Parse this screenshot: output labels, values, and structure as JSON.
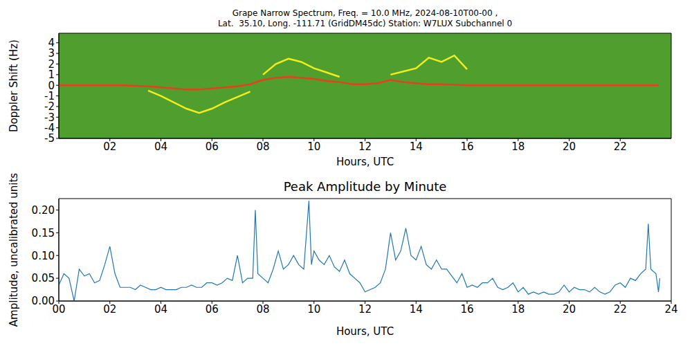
{
  "chart_data": [
    {
      "type": "spectrogram",
      "title": "Grape Narrow Spectrum, Freq. = 10.0 MHz, 2024-08-10T00-00 ,",
      "subtitle": "Lat.  35.10, Long. -111.71 (GridDM45dc) Station: W7LUX Subchannel 0",
      "x_label": "Hours, UTC",
      "y_label": "Doppler Shift (Hz)",
      "xlim": [
        0,
        24
      ],
      "xticks": [
        {
          "value": 2,
          "label": "02"
        },
        {
          "value": 4,
          "label": "04"
        },
        {
          "value": 6,
          "label": "06"
        },
        {
          "value": 8,
          "label": "08"
        },
        {
          "value": 10,
          "label": "10"
        },
        {
          "value": 12,
          "label": "12"
        },
        {
          "value": 14,
          "label": "14"
        },
        {
          "value": 16,
          "label": "16"
        },
        {
          "value": 18,
          "label": "18"
        },
        {
          "value": 20,
          "label": "20"
        },
        {
          "value": 22,
          "label": "22"
        }
      ],
      "ylim": [
        -5,
        4.9
      ],
      "yticks": [
        -5,
        -4,
        -3,
        -2,
        -1,
        0,
        1,
        2,
        3,
        4
      ],
      "x": [
        0,
        0.5,
        1,
        1.5,
        2,
        2.5,
        3,
        3.5,
        4,
        4.5,
        5,
        5.5,
        6,
        6.5,
        7,
        7.5,
        8,
        8.5,
        9,
        9.5,
        10,
        10.5,
        11,
        11.5,
        12,
        12.5,
        13,
        13.5,
        14,
        14.5,
        15,
        15.5,
        16,
        16.5,
        17,
        17.5,
        18,
        18.5,
        19,
        19.5,
        20,
        20.5,
        21,
        21.5,
        22,
        22.5,
        23,
        23.5
      ],
      "series": [
        {
          "color": "#e8401c",
          "values": [
            0,
            0,
            0,
            0,
            0,
            0,
            -0.05,
            -0.1,
            -0.2,
            -0.3,
            -0.4,
            -0.4,
            -0.3,
            -0.2,
            -0.1,
            0.1,
            0.5,
            0.7,
            0.8,
            0.7,
            0.6,
            0.4,
            0.3,
            0.1,
            0.1,
            0.2,
            0.5,
            0.3,
            0.2,
            0.1,
            0.1,
            0.05,
            0,
            0,
            0,
            0,
            0,
            0,
            0,
            0,
            0,
            0,
            0,
            0,
            0,
            0,
            0,
            0
          ]
        },
        {
          "color": "#f2ee1a",
          "values": [
            null,
            null,
            null,
            null,
            null,
            null,
            null,
            null,
            null,
            null,
            null,
            null,
            null,
            null,
            null,
            null,
            1.0,
            2.0,
            2.5,
            2.2,
            1.6,
            1.2,
            0.8,
            null,
            null,
            null,
            1.0,
            1.3,
            1.6,
            2.6,
            2.2,
            2.8,
            1.5,
            null,
            null,
            null,
            null,
            null,
            null,
            null,
            null,
            null,
            null,
            null,
            null,
            null,
            null,
            null
          ]
        },
        {
          "color": "#f2ee1a",
          "values": [
            null,
            null,
            null,
            null,
            null,
            null,
            null,
            -0.5,
            -1.0,
            -1.6,
            -2.2,
            -2.6,
            -2.2,
            -1.6,
            -1.1,
            -0.6,
            null,
            null,
            null,
            null,
            null,
            null,
            null,
            null,
            null,
            null,
            null,
            null,
            null,
            null,
            null,
            null,
            null,
            null,
            null,
            null,
            null,
            null,
            null,
            null,
            null,
            null,
            null,
            null,
            null,
            null,
            null,
            null
          ]
        }
      ]
    },
    {
      "type": "line",
      "title": "Peak Amplitude by Minute",
      "x_label": "Hours, UTC",
      "y_label": "Amplitude, uncalibrated units",
      "xlim": [
        0,
        24
      ],
      "xticks": [
        {
          "value": 0,
          "label": "00"
        },
        {
          "value": 2,
          "label": "02"
        },
        {
          "value": 4,
          "label": "04"
        },
        {
          "value": 6,
          "label": "06"
        },
        {
          "value": 8,
          "label": "08"
        },
        {
          "value": 10,
          "label": "10"
        },
        {
          "value": 12,
          "label": "12"
        },
        {
          "value": 14,
          "label": "14"
        },
        {
          "value": 16,
          "label": "16"
        },
        {
          "value": 18,
          "label": "18"
        },
        {
          "value": 20,
          "label": "20"
        },
        {
          "value": 22,
          "label": "22"
        },
        {
          "value": 24,
          "label": "24"
        }
      ],
      "ylim": [
        0,
        0.225
      ],
      "yticks": [
        {
          "value": 0,
          "label": "0.00"
        },
        {
          "value": 0.05,
          "label": "0.05"
        },
        {
          "value": 0.1,
          "label": "0.10"
        },
        {
          "value": 0.15,
          "label": "0.15"
        },
        {
          "value": 0.2,
          "label": "0.20"
        }
      ],
      "x": [
        0,
        0.2,
        0.4,
        0.6,
        0.8,
        1,
        1.2,
        1.4,
        1.6,
        1.8,
        2,
        2.2,
        2.4,
        2.6,
        2.8,
        3,
        3.2,
        3.4,
        3.6,
        3.8,
        4,
        4.2,
        4.4,
        4.6,
        4.8,
        5,
        5.2,
        5.4,
        5.6,
        5.8,
        6,
        6.2,
        6.4,
        6.6,
        6.8,
        7,
        7.2,
        7.4,
        7.6,
        7.7,
        7.8,
        8,
        8.2,
        8.4,
        8.6,
        8.8,
        9,
        9.2,
        9.4,
        9.6,
        9.8,
        9.9,
        10,
        10.2,
        10.4,
        10.6,
        10.8,
        11,
        11.2,
        11.4,
        11.6,
        11.8,
        12,
        12.2,
        12.4,
        12.6,
        12.8,
        13,
        13.2,
        13.4,
        13.6,
        13.8,
        14,
        14.2,
        14.4,
        14.6,
        14.8,
        15,
        15.2,
        15.4,
        15.6,
        15.8,
        16,
        16.2,
        16.4,
        16.6,
        16.8,
        17,
        17.2,
        17.4,
        17.6,
        17.8,
        18,
        18.2,
        18.4,
        18.6,
        18.8,
        19,
        19.2,
        19.4,
        19.6,
        19.8,
        20,
        20.2,
        20.4,
        20.6,
        20.8,
        21,
        21.2,
        21.4,
        21.6,
        21.8,
        22,
        22.2,
        22.4,
        22.6,
        22.8,
        23,
        23.1,
        23.2,
        23.4,
        23.5,
        23.55
      ],
      "series": [
        {
          "color": "#1f77b4",
          "values": [
            0.035,
            0.06,
            0.05,
            0,
            0.07,
            0.055,
            0.06,
            0.04,
            0.045,
            0.08,
            0.12,
            0.06,
            0.03,
            0.03,
            0.03,
            0.025,
            0.035,
            0.03,
            0.025,
            0.025,
            0.03,
            0.025,
            0.025,
            0.025,
            0.03,
            0.03,
            0.035,
            0.03,
            0.03,
            0.04,
            0.04,
            0.035,
            0.04,
            0.05,
            0.045,
            0.1,
            0.04,
            0.05,
            0.05,
            0.2,
            0.06,
            0.05,
            0.04,
            0.07,
            0.11,
            0.07,
            0.08,
            0.1,
            0.08,
            0.07,
            0.22,
            0.08,
            0.11,
            0.09,
            0.08,
            0.1,
            0.075,
            0.065,
            0.09,
            0.06,
            0.05,
            0.04,
            0.02,
            0.025,
            0.03,
            0.04,
            0.07,
            0.15,
            0.09,
            0.11,
            0.16,
            0.1,
            0.09,
            0.12,
            0.08,
            0.07,
            0.09,
            0.07,
            0.07,
            0.055,
            0.04,
            0.06,
            0.03,
            0.035,
            0.03,
            0.04,
            0.04,
            0.05,
            0.03,
            0.025,
            0.03,
            0.04,
            0.02,
            0.03,
            0.015,
            0.02,
            0.015,
            0.02,
            0.015,
            0.015,
            0.02,
            0.035,
            0.02,
            0.03,
            0.025,
            0.025,
            0.02,
            0.03,
            0.02,
            0.015,
            0.02,
            0.035,
            0.04,
            0.03,
            0.05,
            0.045,
            0.06,
            0.07,
            0.17,
            0.07,
            0.06,
            0.02,
            0.05
          ]
        }
      ]
    }
  ]
}
